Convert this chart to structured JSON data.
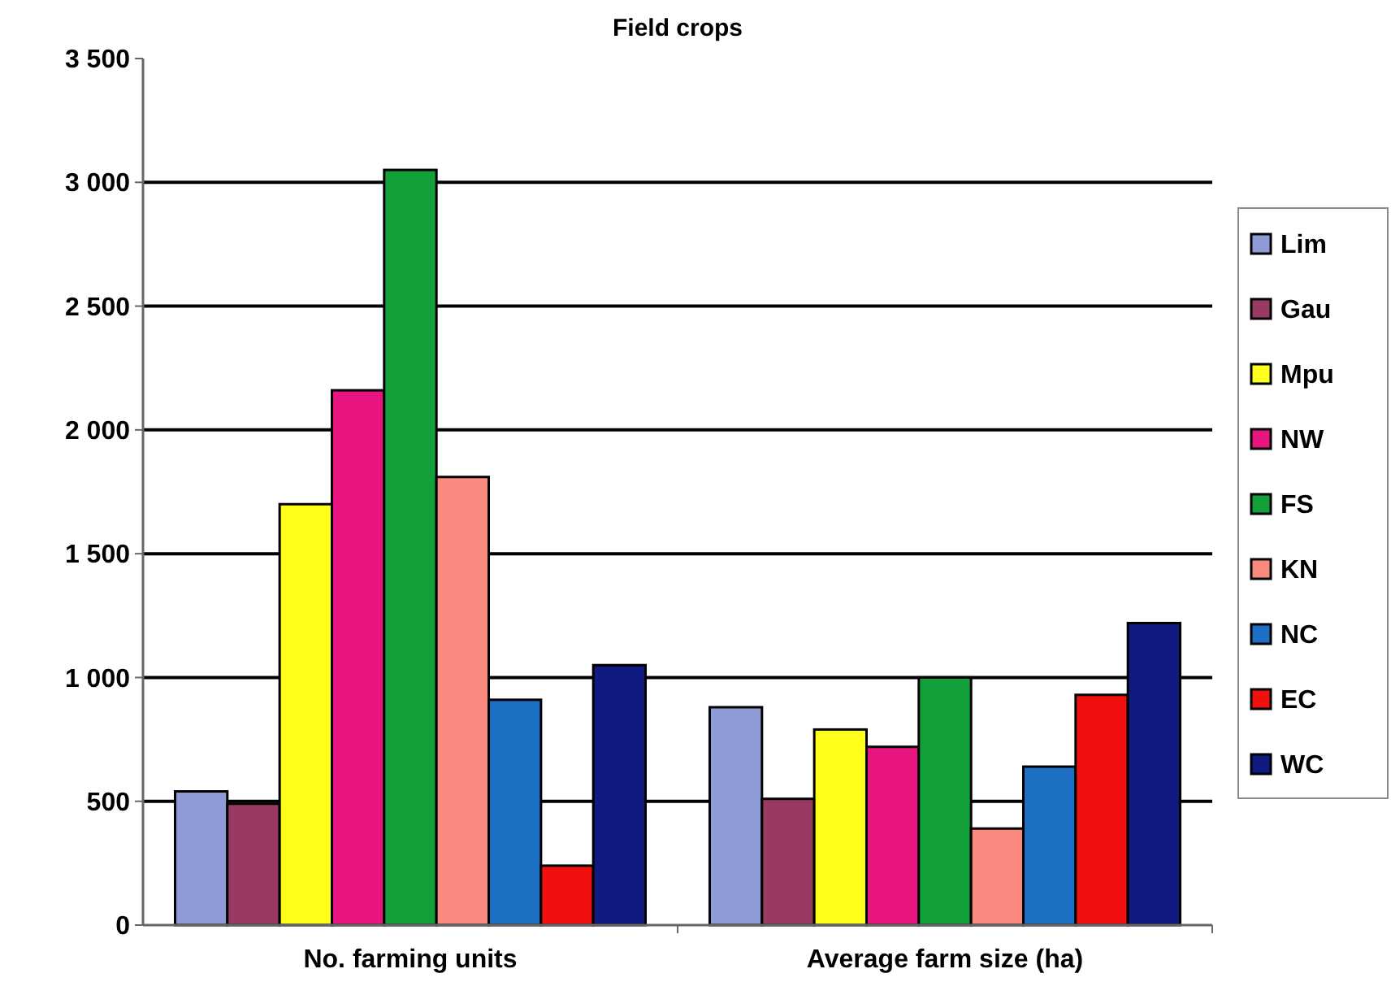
{
  "chart_data": {
    "type": "bar",
    "title": "Field crops",
    "categories": [
      "No. farming units",
      "Average farm size (ha)"
    ],
    "series": [
      {
        "name": "Lim",
        "color": "#8e9bd6",
        "values": [
          540,
          880
        ]
      },
      {
        "name": "Gau",
        "color": "#993a62",
        "values": [
          490,
          510
        ]
      },
      {
        "name": "Mpu",
        "color": "#ffff1a",
        "values": [
          1700,
          790
        ]
      },
      {
        "name": "NW",
        "color": "#e8147f",
        "values": [
          2160,
          720
        ]
      },
      {
        "name": "FS",
        "color": "#13a03a",
        "values": [
          3050,
          1000
        ]
      },
      {
        "name": "KN",
        "color": "#fa8a80",
        "values": [
          1810,
          390
        ]
      },
      {
        "name": "NC",
        "color": "#1d6fc4",
        "values": [
          910,
          640
        ]
      },
      {
        "name": "EC",
        "color": "#f01010",
        "values": [
          240,
          930
        ]
      },
      {
        "name": "WC",
        "color": "#101a80",
        "values": [
          1050,
          1220
        ]
      }
    ],
    "ylim": [
      0,
      3500
    ],
    "yticks": [
      {
        "value": 0,
        "label": "0"
      },
      {
        "value": 500,
        "label": "500"
      },
      {
        "value": 1000,
        "label": "1 000"
      },
      {
        "value": 1500,
        "label": "1 500"
      },
      {
        "value": 2000,
        "label": "2 000"
      },
      {
        "value": 2500,
        "label": "2 500"
      },
      {
        "value": 3000,
        "label": "3 000"
      },
      {
        "value": 3500,
        "label": "3 500"
      }
    ],
    "grid": "y",
    "legend": "right"
  }
}
